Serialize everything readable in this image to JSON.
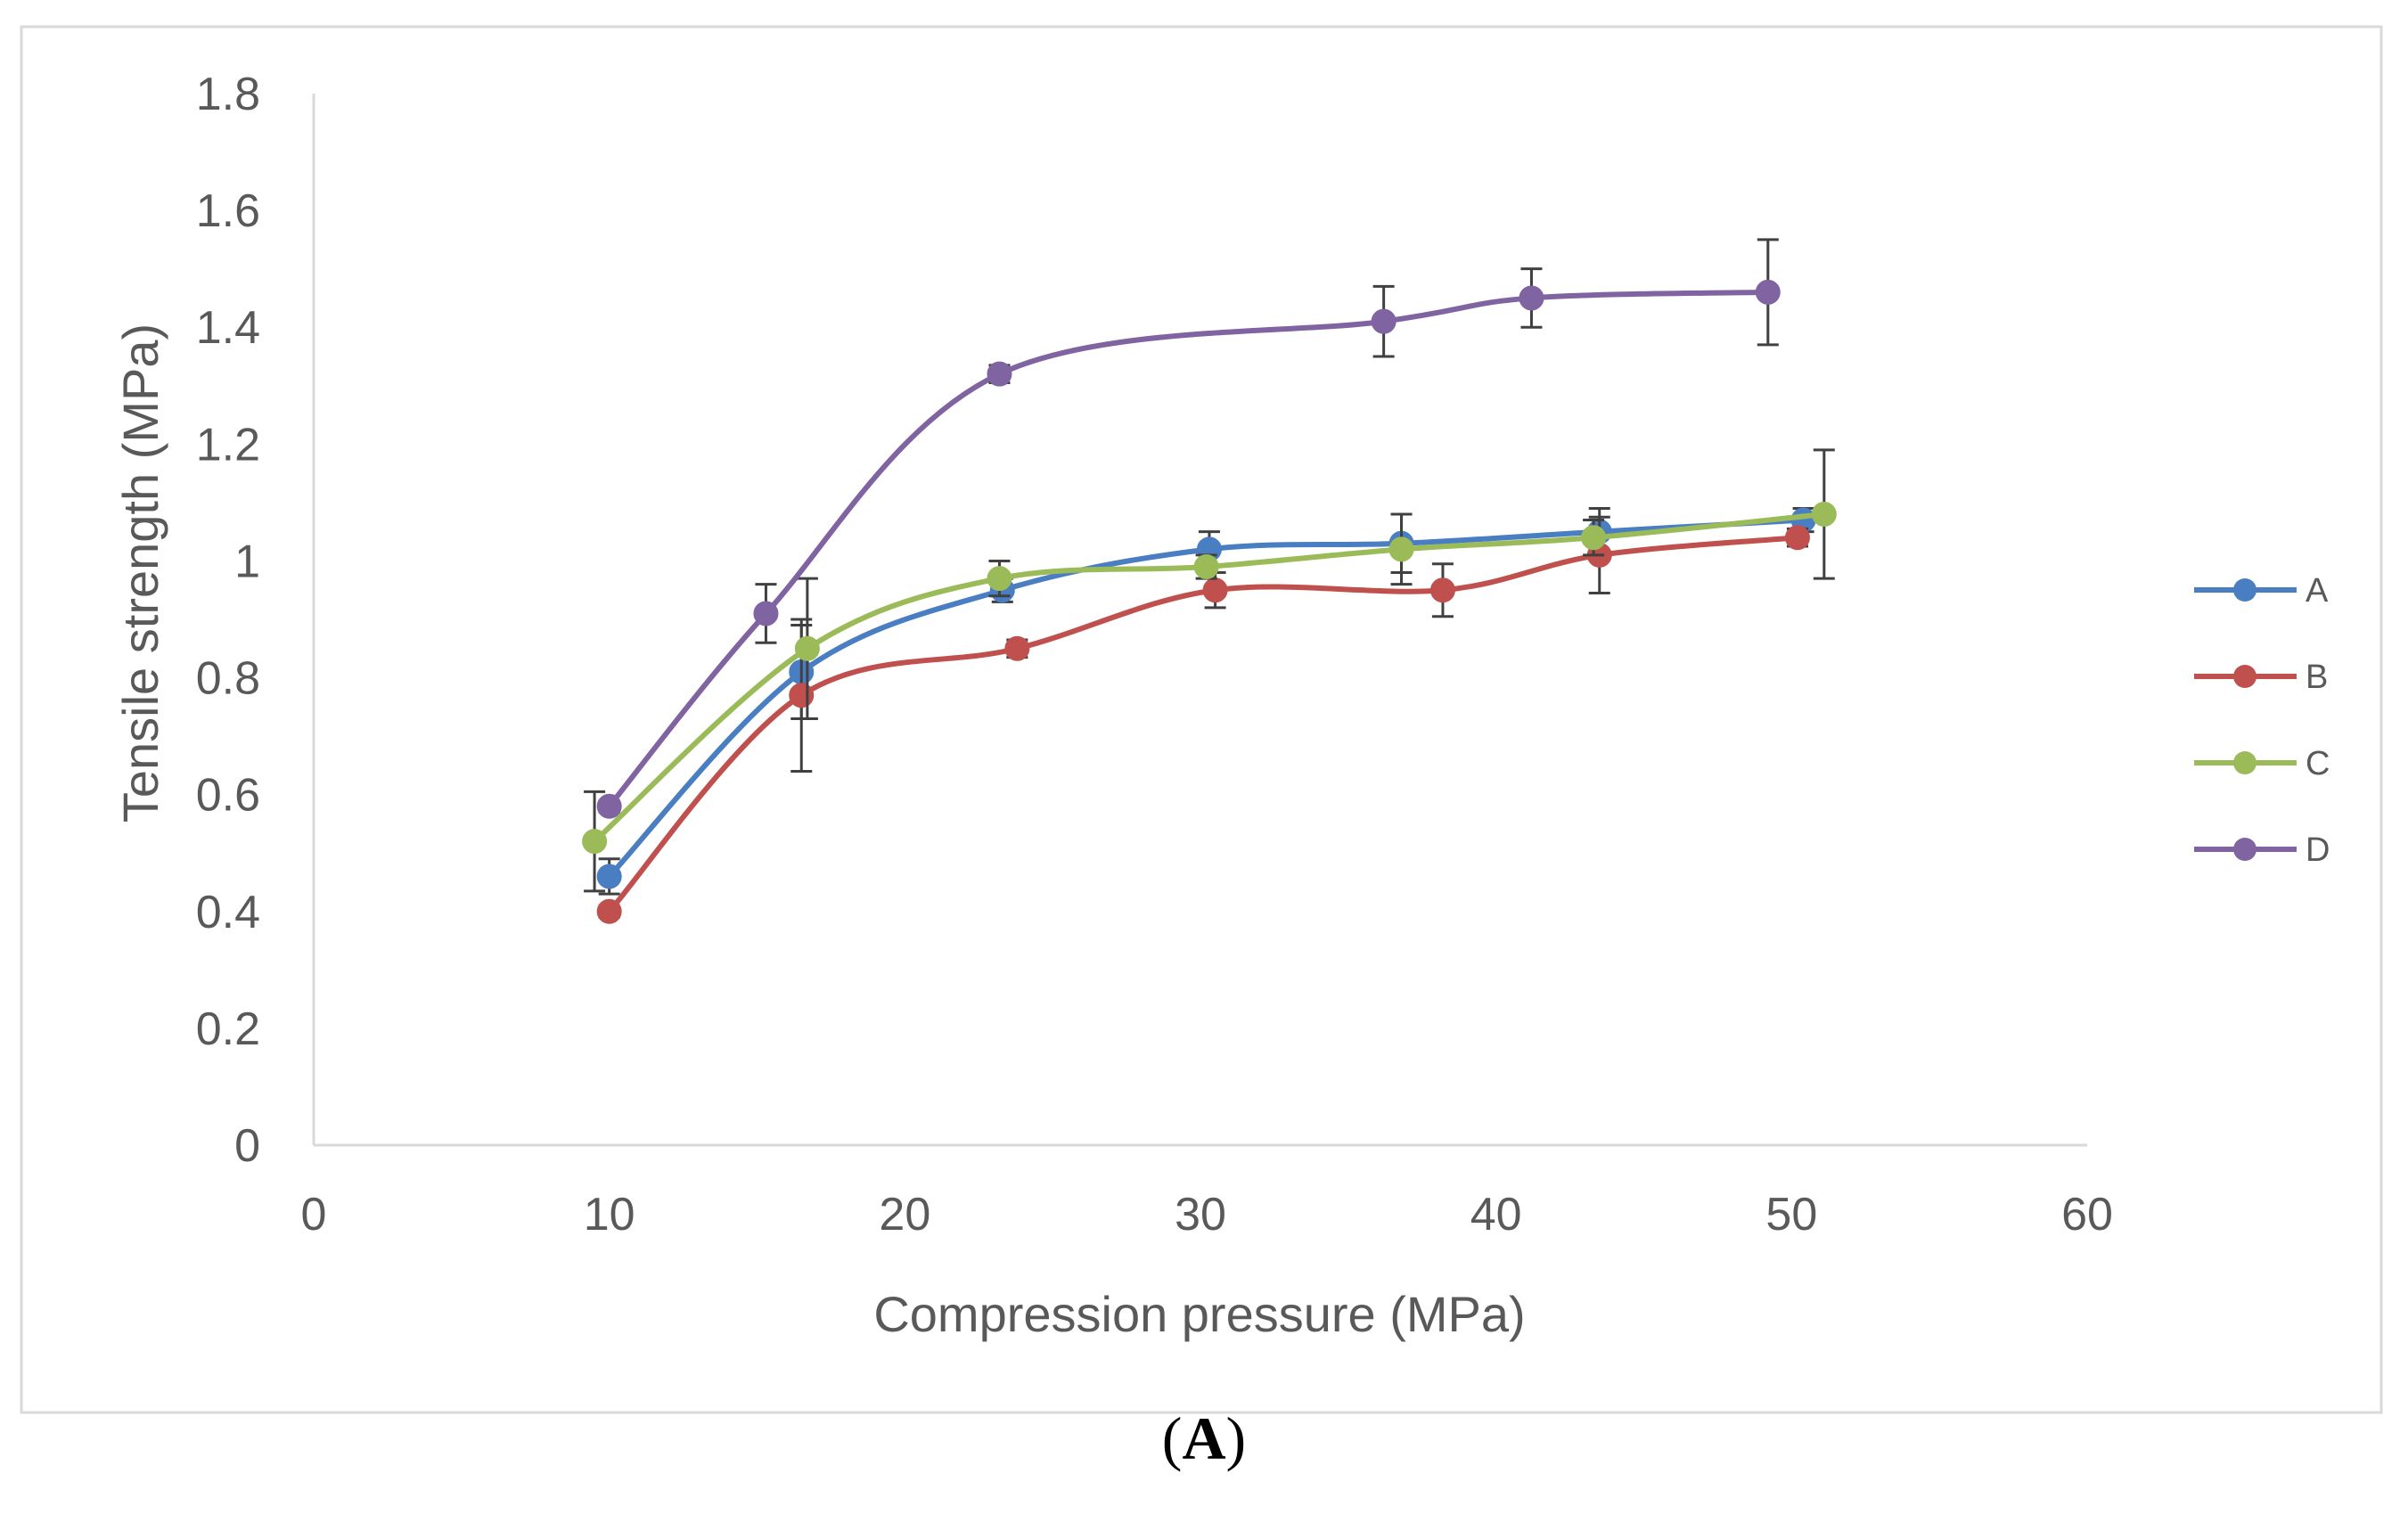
{
  "chart_data": {
    "type": "line",
    "title": "",
    "xlabel": "Compression pressure (MPa)",
    "ylabel": "Tensile strength (MPa)",
    "xlim": [
      0,
      60
    ],
    "ylim": [
      0,
      1.8
    ],
    "x_ticks": [
      "0",
      "10",
      "20",
      "30",
      "40",
      "50",
      "60"
    ],
    "y_ticks": [
      "0",
      "0.2",
      "0.4",
      "0.6",
      "0.8",
      "1",
      "1.2",
      "1.4",
      "1.6",
      "1.8"
    ],
    "grid": false,
    "legend_position": "right",
    "series": [
      {
        "name": "A",
        "color": "#4a7ec2",
        "x": [
          10,
          16.5,
          23.3,
          30.3,
          36.8,
          43.5,
          50.4
        ],
        "y": [
          0.46,
          0.81,
          0.95,
          1.02,
          1.03,
          1.05,
          1.07
        ],
        "err": [
          0.03,
          0.08,
          0.02,
          0.03,
          0.05,
          0.04,
          0.02
        ]
      },
      {
        "name": "B",
        "color": "#c0504d",
        "x": [
          10,
          16.5,
          23.8,
          30.5,
          38.2,
          43.5,
          50.2
        ],
        "y": [
          0.4,
          0.77,
          0.85,
          0.95,
          0.95,
          1.01,
          1.04
        ],
        "err": [
          0.01,
          0.13,
          0.015,
          0.03,
          0.045,
          0.065,
          0.015
        ]
      },
      {
        "name": "C",
        "color": "#9bbb59",
        "x": [
          9.5,
          16.7,
          23.2,
          30.2,
          36.8,
          43.3,
          51.1
        ],
        "y": [
          0.52,
          0.85,
          0.97,
          0.99,
          1.02,
          1.04,
          1.08
        ],
        "err": [
          0.085,
          0.12,
          0.03,
          0.02,
          0.06,
          0.03,
          0.11
        ]
      },
      {
        "name": "D",
        "color": "#8064a2",
        "x": [
          10,
          15.3,
          23.2,
          36.2,
          41.2,
          49.2
        ],
        "y": [
          0.58,
          0.91,
          1.32,
          1.41,
          1.45,
          1.46
        ],
        "err": [
          0.01,
          0.05,
          0.015,
          0.06,
          0.05,
          0.09
        ]
      }
    ]
  },
  "panel_label": "A"
}
